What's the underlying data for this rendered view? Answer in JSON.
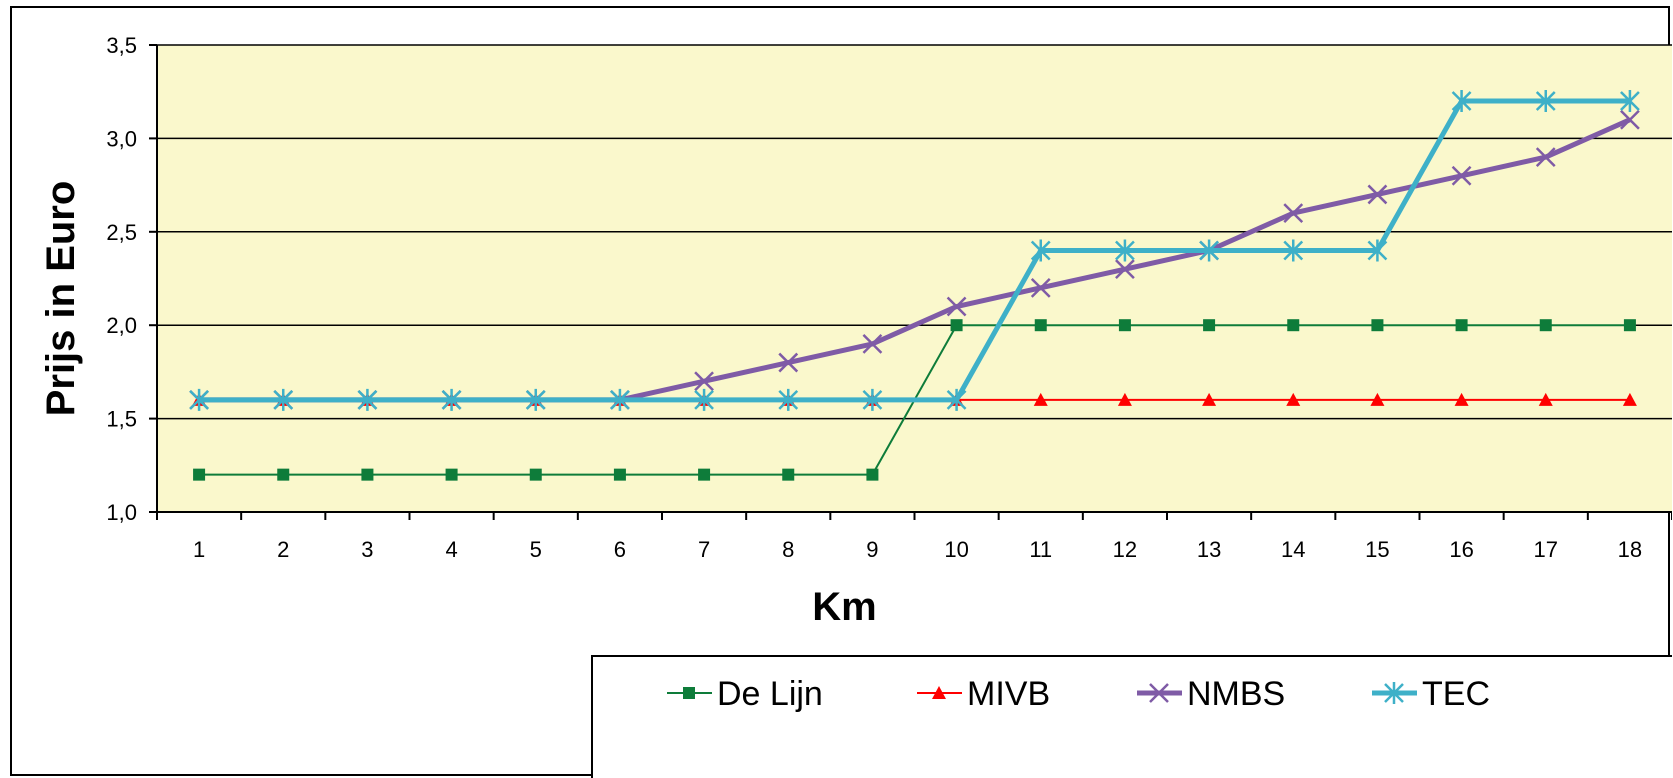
{
  "chart_data": {
    "type": "line",
    "title": "",
    "xlabel": "Km",
    "ylabel": "Prijs in Euro",
    "x": [
      1,
      2,
      3,
      4,
      5,
      6,
      7,
      8,
      9,
      10,
      11,
      12,
      13,
      14,
      15,
      16,
      17,
      18
    ],
    "x_tick_labels": [
      "1",
      "2",
      "3",
      "4",
      "5",
      "6",
      "7",
      "8",
      "9",
      "10",
      "11",
      "12",
      "13",
      "14",
      "15",
      "16",
      "17",
      "18"
    ],
    "y_ticks": [
      1.0,
      1.5,
      2.0,
      2.5,
      3.0,
      3.5
    ],
    "y_tick_labels": [
      "1,0",
      "1,5",
      "2,0",
      "2,5",
      "3,0",
      "3,5"
    ],
    "ylim": [
      1.0,
      3.5
    ],
    "grid": "horizontal",
    "plot_background": "#FAF8CC",
    "legend_position": "bottom-right",
    "series": [
      {
        "name": "De Lijn",
        "color": "#0E7C3A",
        "marker": "square",
        "line_width": "thin",
        "values": [
          1.2,
          1.2,
          1.2,
          1.2,
          1.2,
          1.2,
          1.2,
          1.2,
          1.2,
          2.0,
          2.0,
          2.0,
          2.0,
          2.0,
          2.0,
          2.0,
          2.0,
          2.0
        ]
      },
      {
        "name": "MIVB",
        "color": "#FF0000",
        "marker": "triangle",
        "line_width": "thin",
        "values": [
          1.6,
          1.6,
          1.6,
          1.6,
          1.6,
          1.6,
          1.6,
          1.6,
          1.6,
          1.6,
          1.6,
          1.6,
          1.6,
          1.6,
          1.6,
          1.6,
          1.6,
          1.6
        ]
      },
      {
        "name": "NMBS",
        "color": "#7F5BA6",
        "marker": "x",
        "line_width": "thick",
        "values": [
          1.6,
          1.6,
          1.6,
          1.6,
          1.6,
          1.6,
          1.7,
          1.8,
          1.9,
          2.1,
          2.2,
          2.3,
          2.4,
          2.6,
          2.7,
          2.8,
          2.9,
          3.1
        ]
      },
      {
        "name": "TEC",
        "color": "#3EB0C8",
        "marker": "asterisk",
        "line_width": "thick",
        "values": [
          1.6,
          1.6,
          1.6,
          1.6,
          1.6,
          1.6,
          1.6,
          1.6,
          1.6,
          1.6,
          2.4,
          2.4,
          2.4,
          2.4,
          2.4,
          3.2,
          3.2,
          3.2
        ]
      }
    ]
  }
}
